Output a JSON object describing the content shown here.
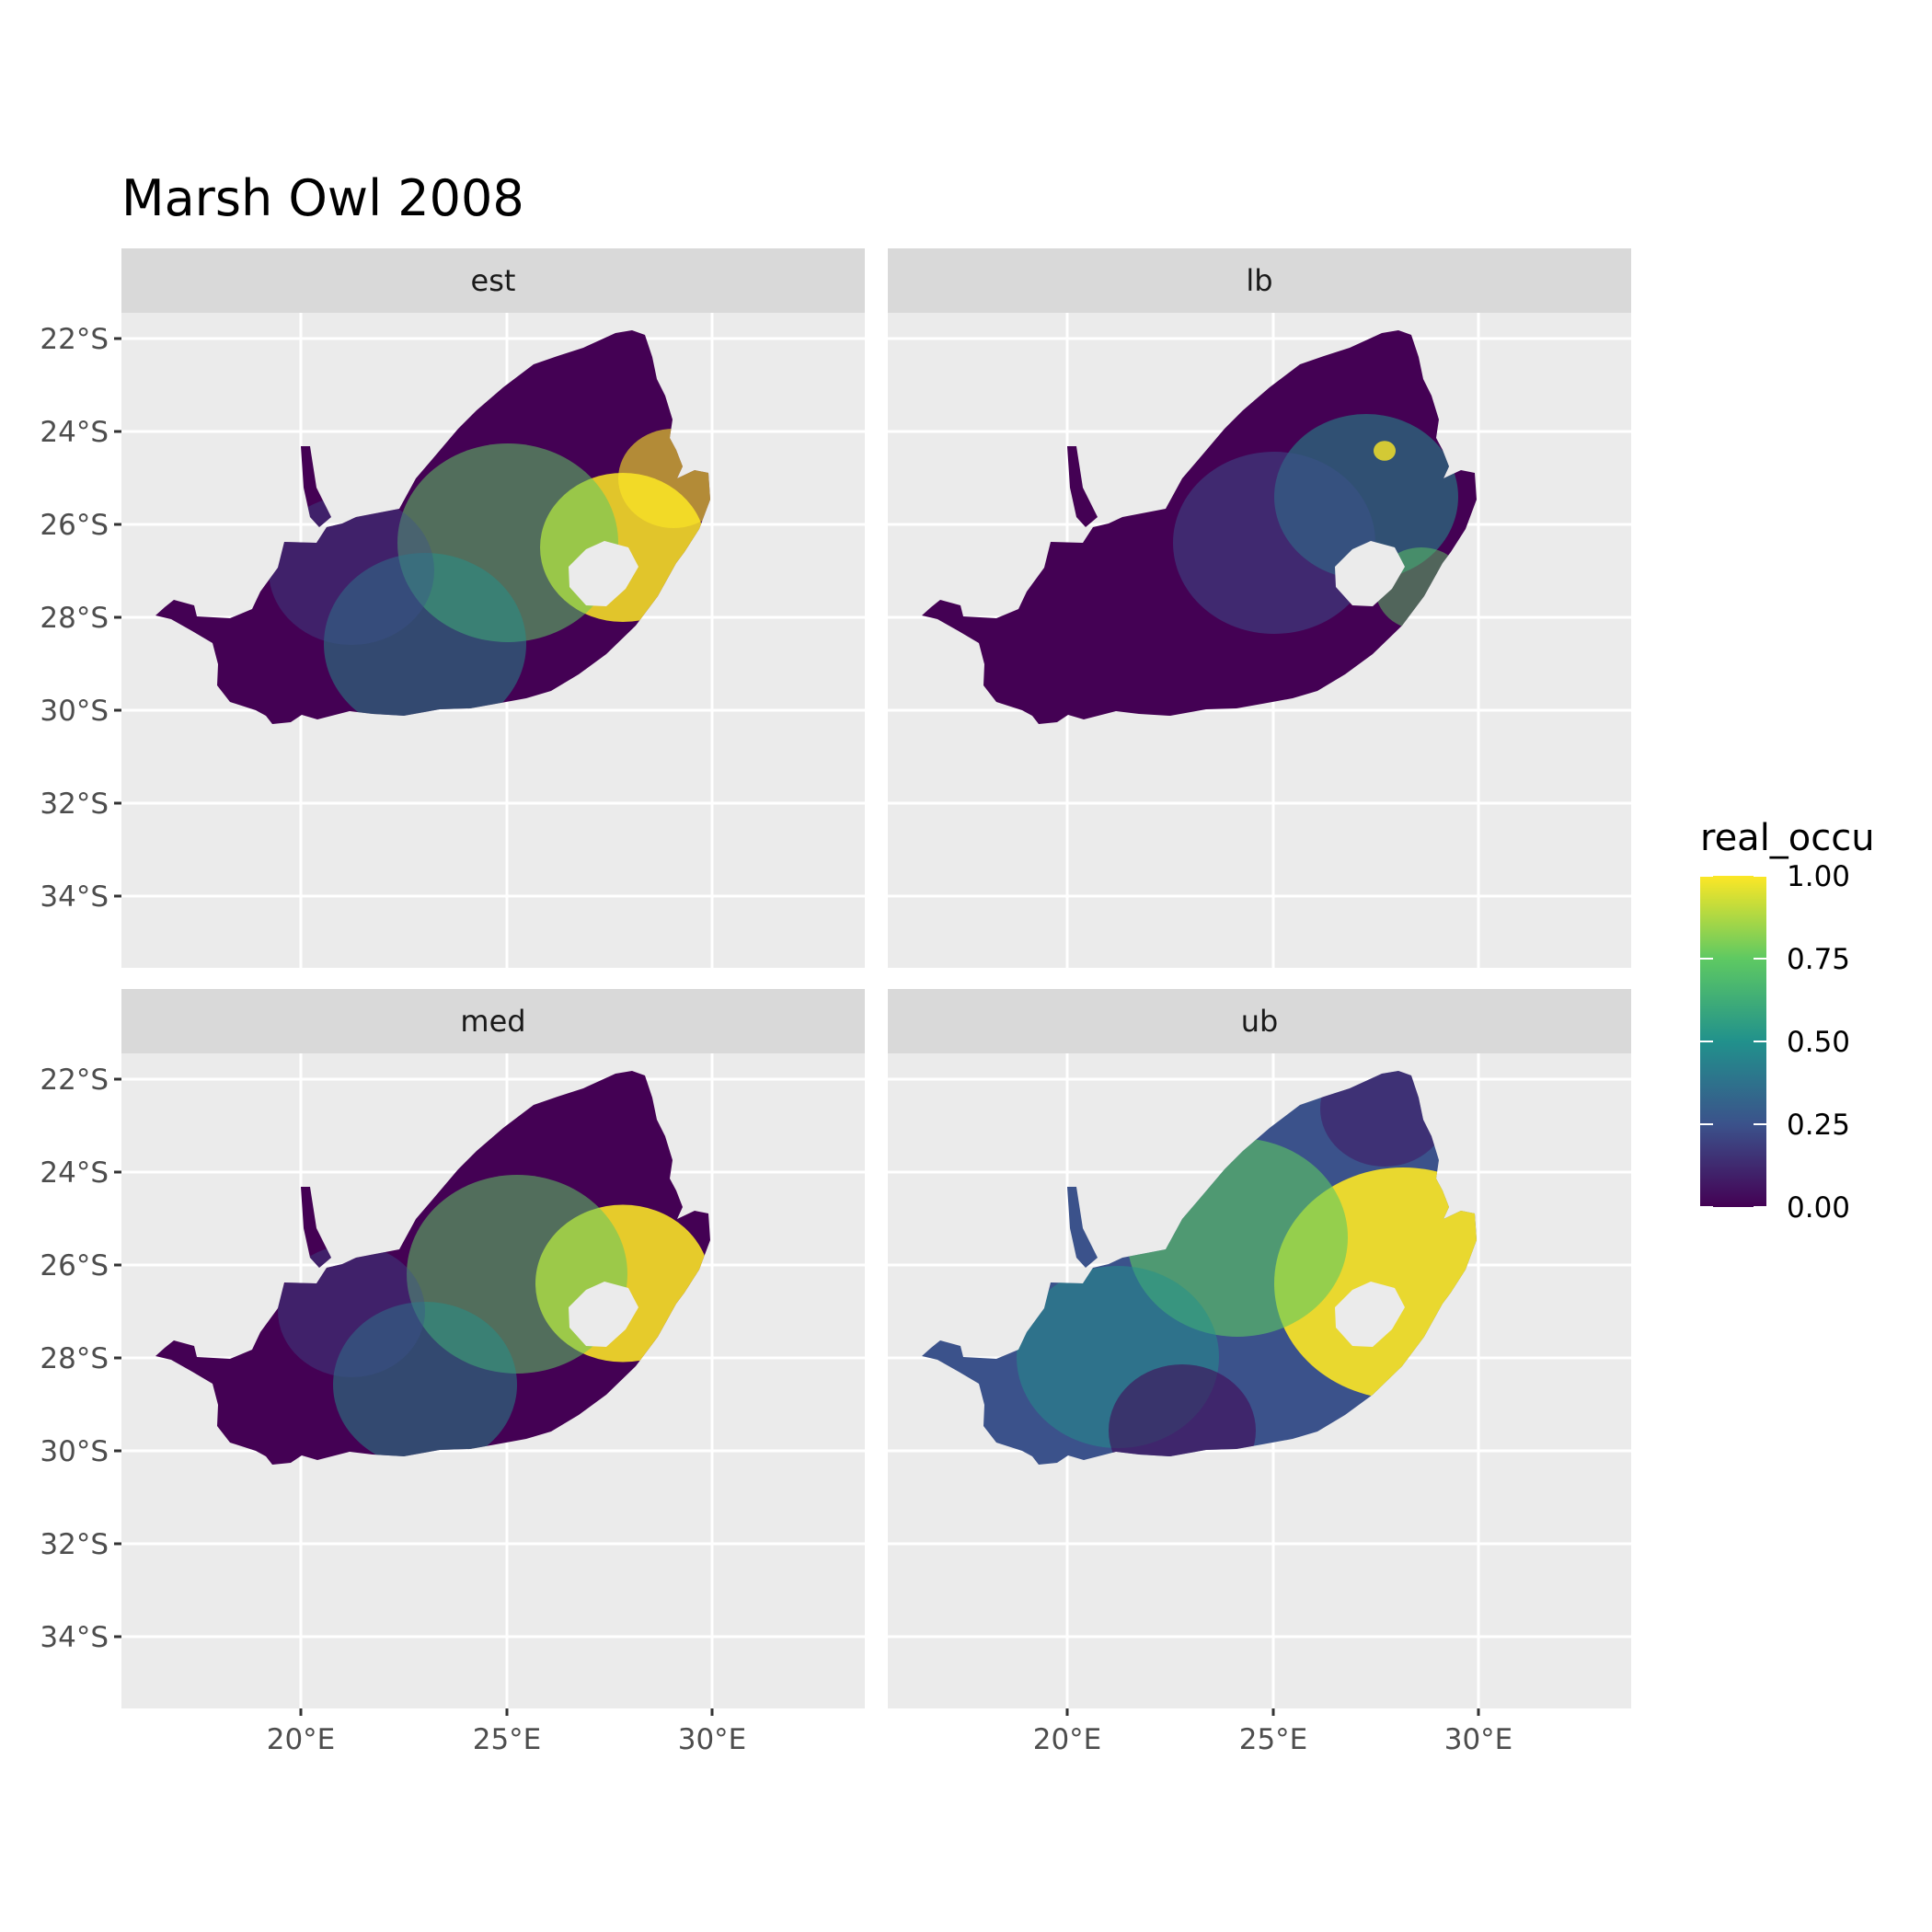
{
  "chart_data": {
    "type": "heatmap",
    "title": "Marsh Owl 2008",
    "facets": [
      "est",
      "lb",
      "med",
      "ub"
    ],
    "x_ticks": [
      "20°E",
      "25°E",
      "30°E"
    ],
    "y_ticks": [
      "22°S",
      "24°S",
      "26°S",
      "28°S",
      "30°S",
      "32°S",
      "34°S"
    ],
    "legend": {
      "title": "real_occu",
      "labels": [
        "1.00",
        "0.75",
        "0.50",
        "0.25",
        "0.00"
      ],
      "range": [
        0,
        1
      ],
      "colors": [
        "#440154",
        "#3b528b",
        "#21918c",
        "#5ec962",
        "#fde725"
      ]
    },
    "region": "South Africa",
    "grid": true,
    "legend_position": "right"
  }
}
